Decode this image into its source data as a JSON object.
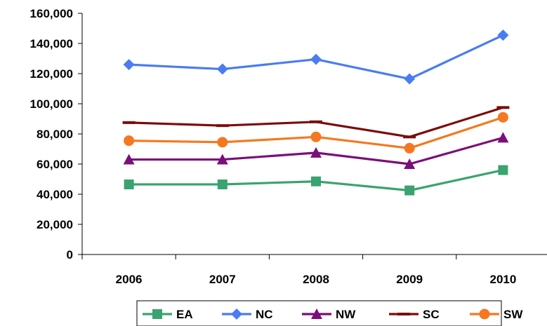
{
  "chart_data": {
    "type": "line",
    "title": "",
    "xlabel": "",
    "ylabel": "",
    "categories": [
      "2006",
      "2007",
      "2008",
      "2009",
      "2010"
    ],
    "ylim": [
      0,
      160000
    ],
    "y_ticks": [
      0,
      20000,
      40000,
      60000,
      80000,
      100000,
      120000,
      140000,
      160000
    ],
    "y_tick_labels": [
      "0",
      "20,000",
      "40,000",
      "60,000",
      "80,000",
      "100,000",
      "120,000",
      "140,000",
      "160,000"
    ],
    "grid": false,
    "legend_position": "bottom",
    "series": [
      {
        "name": "EA",
        "color": "#3aa36f",
        "marker": "square",
        "values": [
          46500,
          46500,
          48500,
          42500,
          56000
        ]
      },
      {
        "name": "NC",
        "color": "#4a7cf2",
        "marker": "diamond",
        "values": [
          126000,
          123000,
          129500,
          116500,
          145500
        ]
      },
      {
        "name": "NW",
        "color": "#7a0f7a",
        "marker": "triangle",
        "values": [
          63000,
          63000,
          67500,
          60000,
          77500
        ]
      },
      {
        "name": "SC",
        "color": "#7b0c0c",
        "marker": "dash",
        "values": [
          87500,
          85500,
          88000,
          78000,
          97500
        ]
      },
      {
        "name": "SW",
        "color": "#f5781f",
        "marker": "circle",
        "values": [
          75500,
          74500,
          78000,
          70500,
          91000
        ]
      }
    ]
  }
}
